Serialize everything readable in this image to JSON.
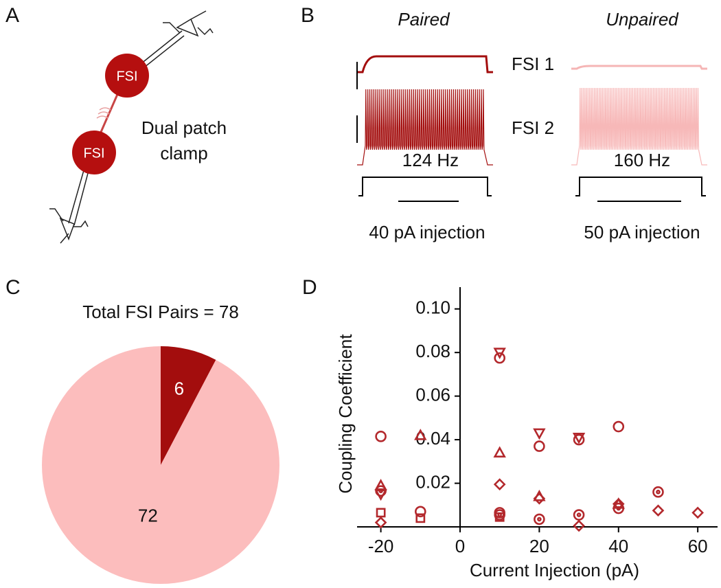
{
  "panel_labels": [
    "A",
    "B",
    "C",
    "D"
  ],
  "diagram": {
    "cell_labels": [
      "FSI",
      "FSI"
    ],
    "caption_lines": [
      "Dual patch",
      "clamp"
    ]
  },
  "traces": {
    "conditions": [
      "Paired",
      "Unpaired"
    ],
    "cells": [
      "FSI 1",
      "FSI 2"
    ],
    "rates": [
      "124 Hz",
      "160 Hz"
    ],
    "injections": [
      "40 pA injection",
      "50 pA injection"
    ]
  },
  "chart_data": [
    {
      "type": "pie",
      "title": "Total FSI Pairs = 78",
      "values": [
        6,
        72
      ],
      "colors": [
        "#a30d0d",
        "#fcbdbd"
      ],
      "label_colors": [
        "#ffffff",
        "#111111"
      ]
    },
    {
      "type": "scatter",
      "x_label": "Current Injection (pA)",
      "y_label": "Coupling Coefficient",
      "xlim": [
        -26,
        65
      ],
      "ylim": [
        0,
        0.11
      ],
      "xticks": [
        -20,
        0,
        20,
        40,
        60
      ],
      "yticks": [
        0.02,
        0.04,
        0.06,
        0.08,
        {
          "value": 0.1,
          "label": "0.10"
        }
      ],
      "series": [
        {
          "marker": "circle",
          "color": "#b3282c",
          "x": [
            -20,
            -10,
            10,
            10,
            20,
            30,
            40
          ],
          "values": [
            0.0415,
            0.007,
            0.0775,
            0.0065,
            0.037,
            0.04,
            0.046
          ]
        },
        {
          "marker": "triangle-up",
          "color": "#b3282c",
          "x": [
            -20,
            -10,
            10,
            20,
            40
          ],
          "values": [
            0.019,
            0.042,
            0.034,
            0.014,
            0.0105
          ]
        },
        {
          "marker": "triangle-down",
          "color": "#b3282c",
          "x": [
            -20,
            10,
            20,
            30
          ],
          "values": [
            0.015,
            0.08,
            0.043,
            0.041
          ]
        },
        {
          "marker": "diamond",
          "color": "#b3282c",
          "x": [
            -20,
            10,
            20,
            30,
            40,
            50,
            60
          ],
          "values": [
            0.002,
            0.0195,
            0.013,
            0.0005,
            0.0105,
            0.0075,
            0.0065
          ]
        },
        {
          "marker": "square",
          "color": "#b3282c",
          "x": [
            -20,
            -10,
            10
          ],
          "values": [
            0.0065,
            0.004,
            0.0045
          ]
        },
        {
          "marker": "circle-dot",
          "color": "#b3282c",
          "x": [
            -20,
            10,
            20,
            30,
            40,
            50
          ],
          "values": [
            0.0165,
            0.0055,
            0.0035,
            0.0055,
            0.0085,
            0.016
          ]
        }
      ]
    }
  ]
}
